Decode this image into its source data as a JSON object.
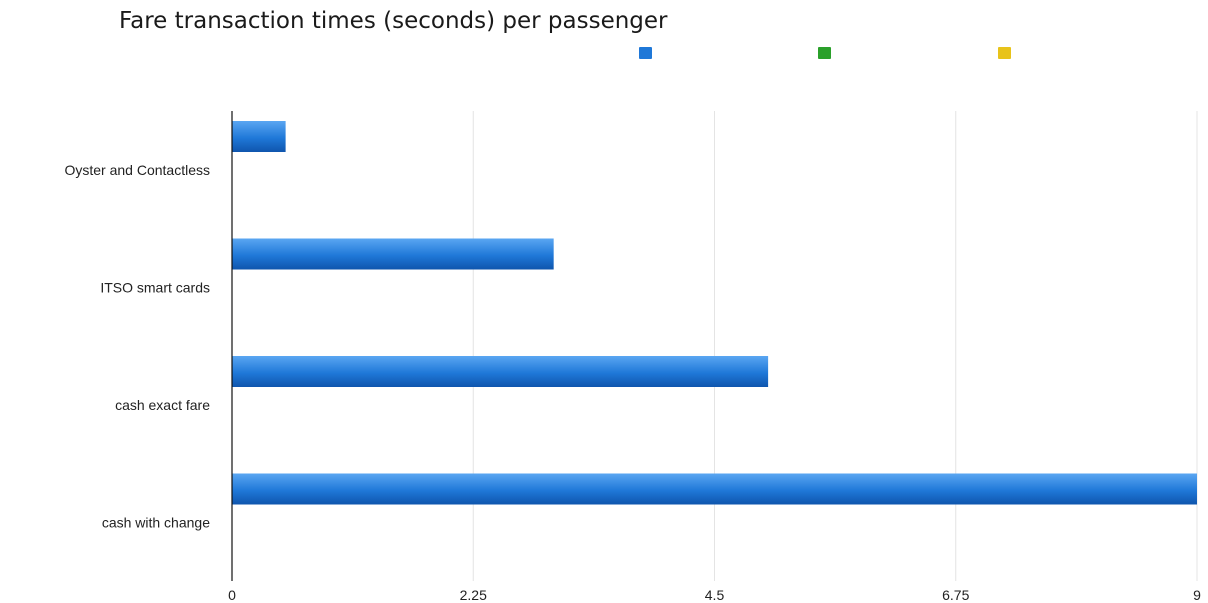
{
  "title": "Fare transaction times (seconds) per passenger",
  "chart_data": {
    "type": "bar",
    "orientation": "horizontal",
    "categories": [
      "Oyster and Contactless",
      "ITSO smart cards",
      "cash exact fare",
      "cash with change"
    ],
    "series": [
      {
        "values": [
          0.5,
          3,
          5,
          9
        ],
        "color": "#1f78d8"
      }
    ],
    "legend": {
      "placement": "top",
      "swatches": [
        {
          "color": "#1f78d8"
        },
        {
          "color": "#2aa02a"
        },
        {
          "color": "#e8c31a"
        }
      ]
    },
    "x_ticks": [
      "0",
      "2.25",
      "4.5",
      "6.75",
      "9"
    ],
    "xlim": [
      0,
      9
    ],
    "grid": true
  }
}
